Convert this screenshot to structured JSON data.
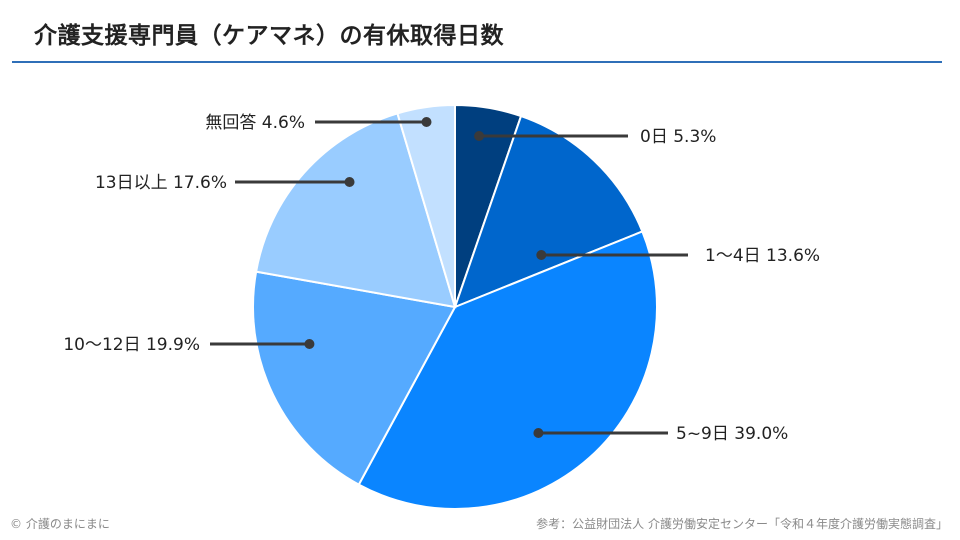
{
  "header": {
    "title": "介護支援専門員（ケアマネ）の有休取得日数"
  },
  "chart_data": {
    "type": "pie",
    "title": "介護支援専門員（ケアマネ）の有休取得日数",
    "unit": "%",
    "slices": [
      {
        "label": "0日",
        "value": 5.3,
        "value_text": "5.3%",
        "color": "#003f7f"
      },
      {
        "label": "1～4日",
        "value": 13.6,
        "value_text": "13.6%",
        "color": "#0066cc"
      },
      {
        "label": "5~9日",
        "value": 39.0,
        "value_text": "39.0%",
        "color": "#0a85ff"
      },
      {
        "label": "10～12日",
        "value": 19.9,
        "value_text": "19.9%",
        "color": "#55aaff"
      },
      {
        "label": "13日以上",
        "value": 17.6,
        "value_text": "17.6%",
        "color": "#99ccff"
      },
      {
        "label": "無回答",
        "value": 4.6,
        "value_text": "4.6%",
        "color": "#c2e0ff"
      }
    ],
    "start_angle": "12 o'clock",
    "direction": "clockwise",
    "legend": "none",
    "label_style": "callout lines with dot markers"
  },
  "footer": {
    "copyright": "© 介護のまにまに",
    "source": "参考：公益財団法人 介護労働安定センター「令和４年度介護労働実態調査」"
  }
}
